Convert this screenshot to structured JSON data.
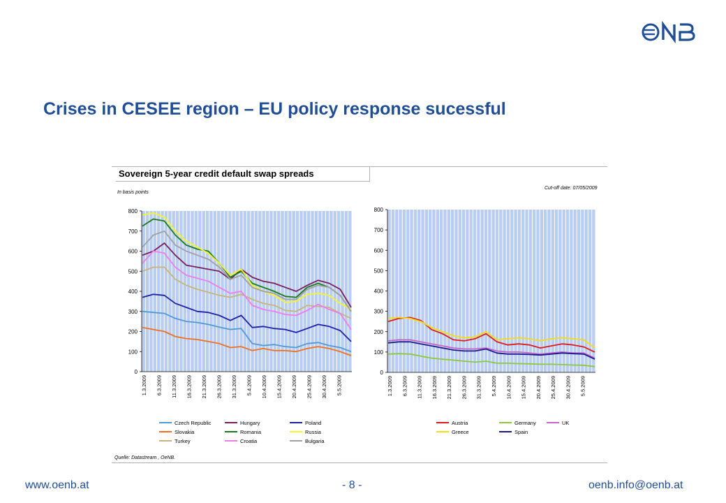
{
  "logo": {
    "text": "€NB",
    "color": "#1f4e96"
  },
  "slide": {
    "title": "Crises in CESEE region – EU policy response sucessful",
    "footer_left": "www.oenb.at",
    "footer_center": "- 8 -",
    "footer_right": "oenb.info@oenb.at"
  },
  "figure": {
    "title": "Sovereign 5-year credit default swap spreads",
    "unit_note": "In basis points",
    "cutoff_note": "Cut-off date: 07/05/2009",
    "source_note": "Quelle: Datastream , OeNB."
  },
  "chart_data": [
    {
      "type": "line",
      "ylim": [
        0,
        800
      ],
      "yticks": [
        0,
        100,
        200,
        300,
        400,
        500,
        600,
        700,
        800
      ],
      "x_ticks": [
        "1.3.2009",
        "6.3.2009",
        "11.3.2009",
        "16.3.2009",
        "21.3.2009",
        "26.3.2009",
        "31.3.2009",
        "5.4.2009",
        "10.4.2009",
        "15.4.2009",
        "20.4.2009",
        "25.4.2009",
        "30.4.2009",
        "5.5.2009"
      ],
      "grid": true,
      "legend_position": "bottom",
      "series": [
        {
          "name": "Czech Republic",
          "color": "#4f9ad6",
          "values": [
            300,
            295,
            290,
            265,
            250,
            245,
            235,
            222,
            210,
            215,
            140,
            130,
            135,
            125,
            120,
            140,
            145,
            130,
            120,
            100
          ]
        },
        {
          "name": "Hungary",
          "color": "#7a1f5c",
          "values": [
            580,
            600,
            640,
            580,
            530,
            520,
            510,
            500,
            460,
            510,
            470,
            450,
            440,
            420,
            400,
            430,
            455,
            440,
            410,
            320
          ]
        },
        {
          "name": "Poland",
          "color": "#1f1fa8",
          "values": [
            370,
            385,
            380,
            340,
            320,
            300,
            295,
            280,
            255,
            280,
            220,
            225,
            215,
            210,
            195,
            215,
            235,
            225,
            205,
            150
          ]
        },
        {
          "name": "Slovakia",
          "color": "#f07020",
          "values": [
            220,
            210,
            200,
            175,
            165,
            160,
            150,
            140,
            120,
            125,
            105,
            115,
            105,
            105,
            100,
            115,
            125,
            115,
            100,
            80
          ]
        },
        {
          "name": "Romania",
          "color": "#1a7a1a",
          "values": [
            725,
            760,
            750,
            680,
            630,
            610,
            600,
            540,
            470,
            500,
            440,
            420,
            400,
            375,
            370,
            420,
            440,
            420,
            380,
            300
          ]
        },
        {
          "name": "Russia",
          "color": "#f5f52a",
          "values": [
            780,
            790,
            770,
            700,
            650,
            620,
            590,
            540,
            480,
            510,
            430,
            400,
            380,
            345,
            350,
            385,
            390,
            380,
            340,
            310
          ]
        },
        {
          "name": "Turkey",
          "color": "#c8b478",
          "values": [
            500,
            520,
            520,
            460,
            430,
            410,
            395,
            380,
            370,
            385,
            360,
            340,
            330,
            305,
            300,
            330,
            325,
            320,
            290,
            265
          ]
        },
        {
          "name": "Croatia",
          "color": "#f07af0",
          "values": [
            540,
            600,
            590,
            520,
            480,
            465,
            450,
            420,
            390,
            400,
            330,
            310,
            300,
            285,
            280,
            305,
            335,
            310,
            290,
            210
          ]
        },
        {
          "name": "Bulgaria",
          "color": "#a0a0a0",
          "values": [
            620,
            680,
            700,
            630,
            600,
            580,
            560,
            520,
            460,
            480,
            420,
            400,
            390,
            360,
            360,
            410,
            430,
            420,
            380,
            300
          ]
        }
      ]
    },
    {
      "type": "line",
      "ylim": [
        0,
        800
      ],
      "yticks": [
        0,
        100,
        200,
        300,
        400,
        500,
        600,
        700,
        800
      ],
      "x_ticks": [
        "1.3.2009",
        "6.3.2009",
        "11.3.2009",
        "16.3.2009",
        "21.3.2009",
        "26.3.2009",
        "31.3.2009",
        "5.4.2009",
        "10.4.2009",
        "15.4.2009",
        "20.4.2009",
        "25.4.2009",
        "30.4.2009",
        "5.5.2009"
      ],
      "grid": true,
      "legend_position": "bottom",
      "series": [
        {
          "name": "Austria",
          "color": "#e01a1a",
          "values": [
            250,
            265,
            270,
            255,
            210,
            190,
            160,
            155,
            165,
            190,
            150,
            135,
            140,
            135,
            120,
            130,
            140,
            135,
            125,
            100
          ]
        },
        {
          "name": "Germany",
          "color": "#8cc83c",
          "values": [
            90,
            92,
            90,
            80,
            70,
            65,
            60,
            55,
            50,
            55,
            45,
            45,
            43,
            42,
            40,
            40,
            38,
            36,
            35,
            28
          ]
        },
        {
          "name": "UK",
          "color": "#c864c8",
          "values": [
            155,
            160,
            160,
            150,
            140,
            130,
            120,
            115,
            115,
            120,
            105,
            100,
            100,
            95,
            90,
            95,
            100,
            95,
            95,
            70
          ]
        },
        {
          "name": "Greece",
          "color": "#f5dc14",
          "values": [
            265,
            270,
            265,
            250,
            220,
            200,
            180,
            170,
            175,
            200,
            160,
            165,
            170,
            165,
            155,
            165,
            170,
            165,
            160,
            120
          ]
        },
        {
          "name": "Spain",
          "color": "#1a1a8c",
          "values": [
            145,
            150,
            150,
            140,
            130,
            120,
            110,
            105,
            105,
            115,
            95,
            90,
            90,
            88,
            85,
            90,
            95,
            92,
            90,
            65
          ]
        }
      ]
    }
  ]
}
